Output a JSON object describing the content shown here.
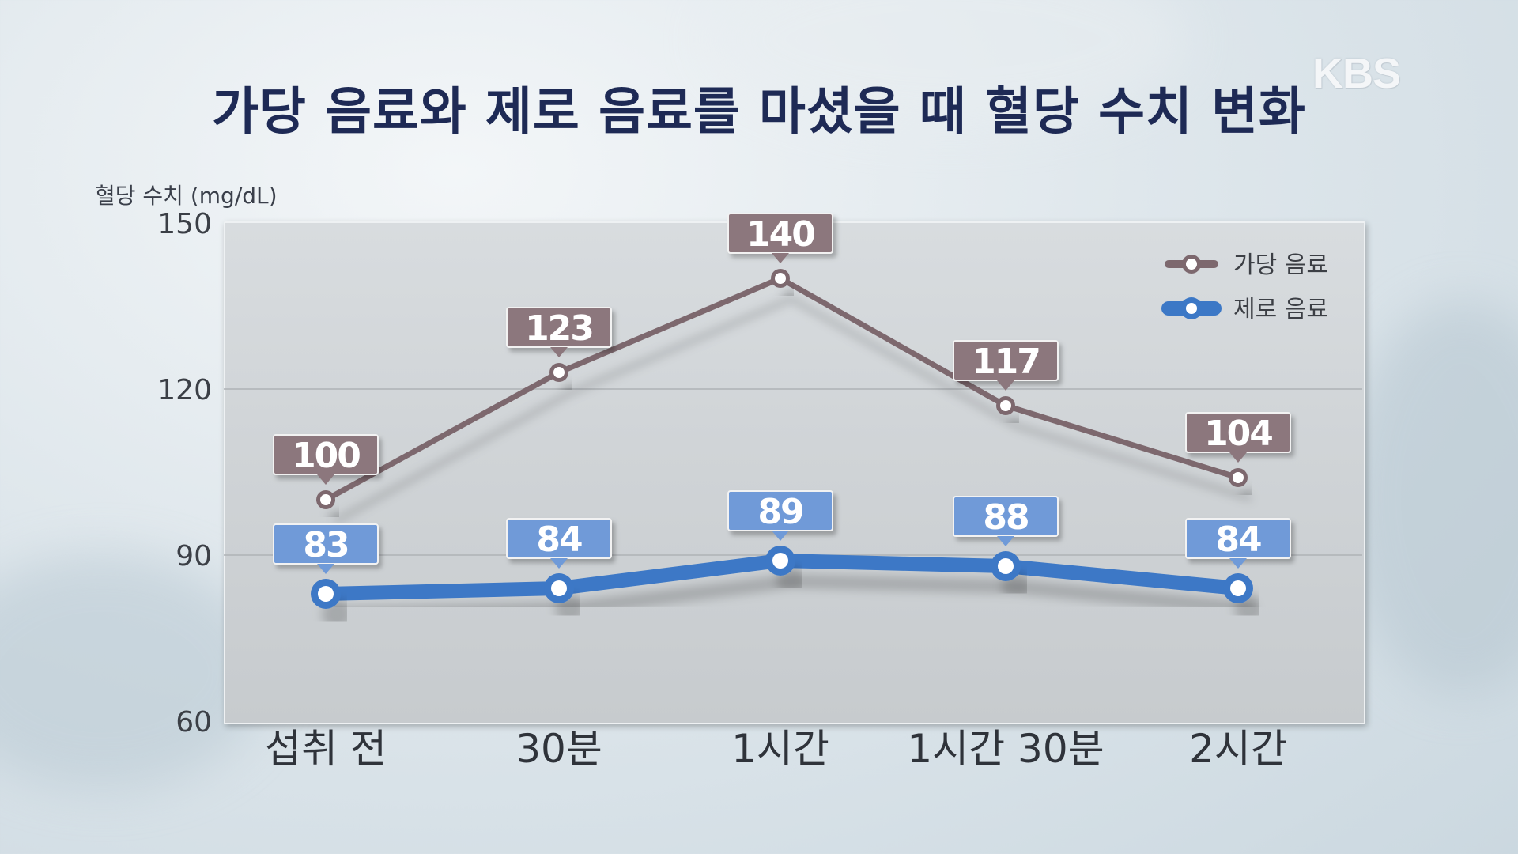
{
  "title": "가당 음료와 제로 음료를 마셨을 때 혈당 수치 변화",
  "logo": "KBS",
  "chart_data": {
    "type": "line",
    "title": "가당 음료와 제로 음료를 마셨을 때 혈당 수치 변화",
    "ylabel": "혈당 수치 (mg/dL)",
    "xlabel": "",
    "categories": [
      "섭취 전",
      "30분",
      "1시간",
      "1시간 30분",
      "2시간"
    ],
    "yticks": [
      150,
      120,
      90,
      60
    ],
    "ylim": [
      60,
      150
    ],
    "grid": true,
    "legend_position": "top-right",
    "series": [
      {
        "name": "가당 음료",
        "values": [
          100,
          123,
          140,
          117,
          104
        ],
        "color": "#7d686e"
      },
      {
        "name": "제로 음료",
        "values": [
          83,
          84,
          89,
          88,
          84
        ],
        "color": "#3c78c6"
      }
    ]
  },
  "colors": {
    "title": "#1e2a55",
    "sugar_label_bg": "#8c777d",
    "zero_label_bg": "#6f9ad8"
  }
}
